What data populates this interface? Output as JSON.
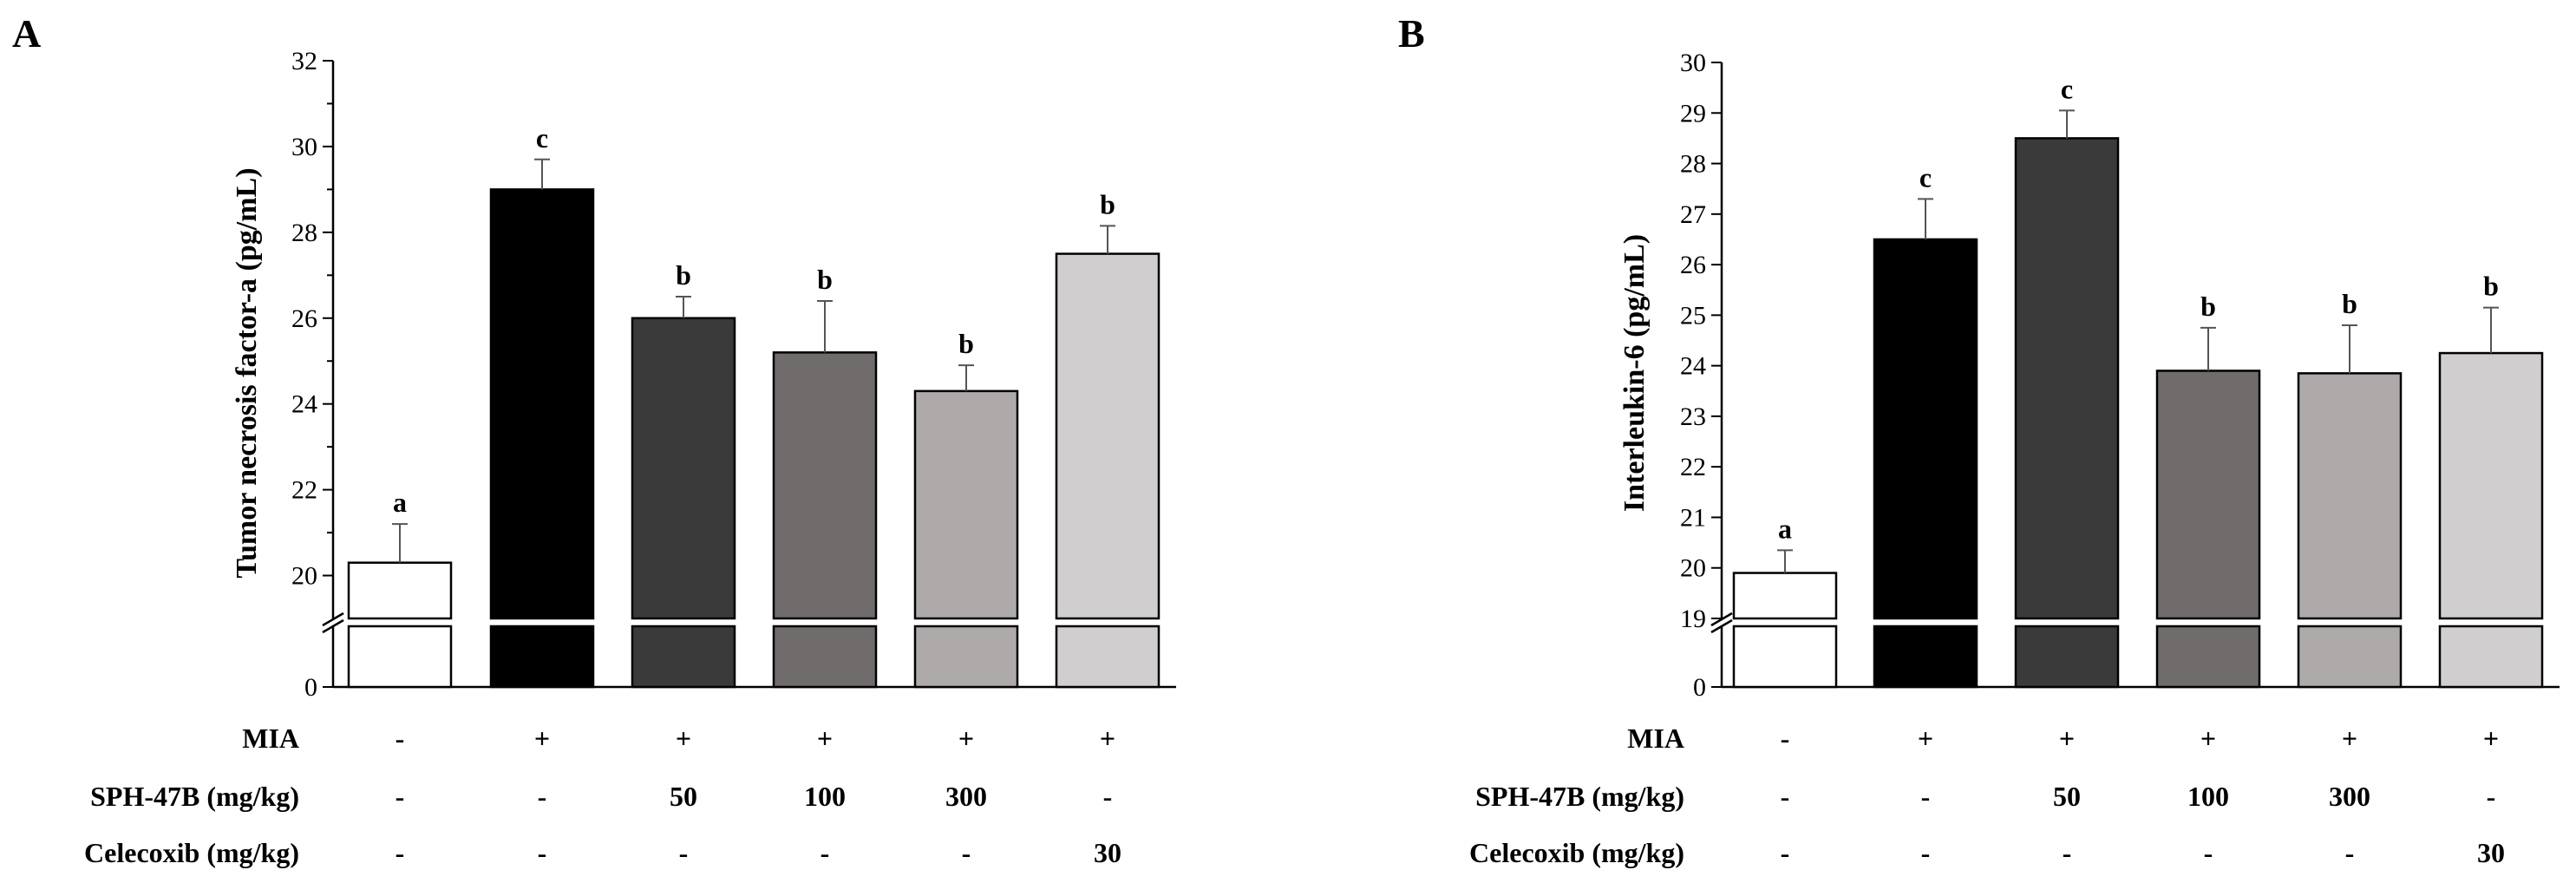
{
  "chart_data": [
    {
      "type": "bar",
      "panel": "A",
      "ylabel": "Tumor necrosis factor-a (pg/mL)",
      "ylim_upper": [
        19,
        32
      ],
      "ylim_lower": [
        0,
        1
      ],
      "yticks_upper": [
        20,
        22,
        24,
        26,
        28,
        30,
        32
      ],
      "yticks_lower": [
        0
      ],
      "broken_axis": true,
      "values": [
        20.3,
        29.0,
        26.0,
        25.2,
        24.3,
        27.5
      ],
      "errors": [
        0.9,
        0.7,
        0.5,
        1.2,
        0.6,
        0.65
      ],
      "labels": [
        "a",
        "c",
        "b",
        "b",
        "b",
        "b"
      ],
      "colors": [
        "#ffffff",
        "#000000",
        "#3a3a3a",
        "#706c6c",
        "#aeaaaa",
        "#d0cece"
      ]
    },
    {
      "type": "bar",
      "panel": "B",
      "ylabel": "Interleukin-6 (pg/mL)",
      "ylim_upper": [
        19,
        30
      ],
      "ylim_lower": [
        0,
        1
      ],
      "yticks_upper": [
        19,
        20,
        21,
        22,
        23,
        24,
        25,
        26,
        27,
        28,
        29,
        30
      ],
      "yticks_lower": [
        0
      ],
      "broken_axis": true,
      "values": [
        19.9,
        26.5,
        28.5,
        23.9,
        23.85,
        24.25
      ],
      "errors": [
        0.45,
        0.8,
        0.55,
        0.85,
        0.95,
        0.9
      ],
      "labels": [
        "a",
        "c",
        "c",
        "b",
        "b",
        "b"
      ],
      "colors": [
        "#ffffff",
        "#000000",
        "#3a3a3a",
        "#706c6c",
        "#aeaaaa",
        "#d0cece"
      ]
    }
  ],
  "treatment_table": {
    "rows": [
      {
        "label": "MIA",
        "values": [
          "-",
          "+",
          "+",
          "+",
          "+",
          "+"
        ]
      },
      {
        "label": "SPH-47B  (mg/kg)",
        "values": [
          "-",
          "-",
          "50",
          "100",
          "300",
          "-"
        ]
      },
      {
        "label": "Celecoxib  (mg/kg)",
        "values": [
          "-",
          "-",
          "-",
          "-",
          "-",
          "30"
        ]
      }
    ]
  }
}
